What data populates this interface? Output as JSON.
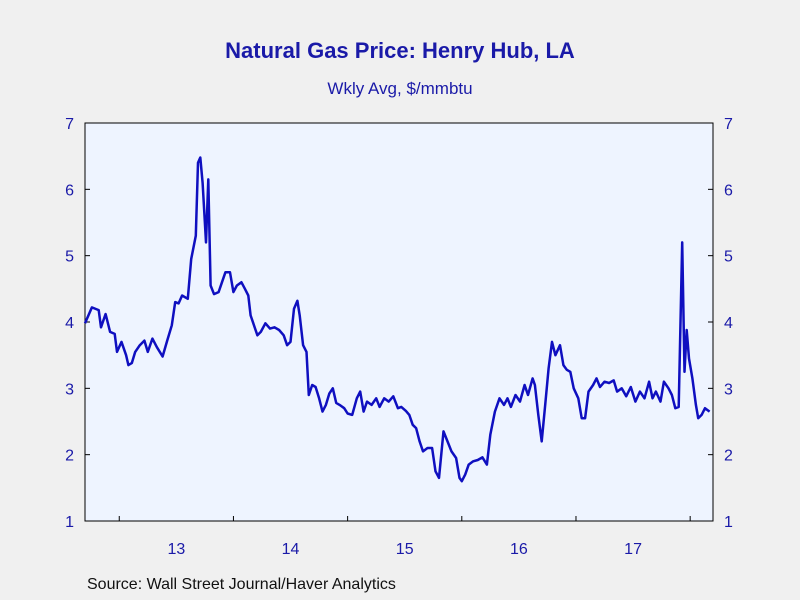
{
  "chart_data": {
    "type": "line",
    "title": "Natural Gas Price: Henry Hub, LA",
    "subtitle": "Wkly Avg, $/mmbtu",
    "source": "Source:  Wall Street Journal/Haver Analytics",
    "ylim": [
      1,
      7
    ],
    "y_ticks": [
      "1",
      "2",
      "3",
      "4",
      "5",
      "6",
      "7"
    ],
    "x_ticks": [
      "13",
      "14",
      "15",
      "16",
      "17"
    ],
    "xlim": [
      2012.7,
      2018.2
    ],
    "grid": false,
    "colors": {
      "line": "#0f0fc0",
      "text": "#1a1aa8",
      "plot_bg": "#eef4ff",
      "page_bg": "#f0f0f0"
    },
    "series": [
      {
        "values": [
          [
            2012.7,
            3.98
          ],
          [
            2012.76,
            4.22
          ],
          [
            2012.82,
            4.18
          ],
          [
            2012.84,
            3.92
          ],
          [
            2012.88,
            4.12
          ],
          [
            2012.92,
            3.85
          ],
          [
            2012.96,
            3.82
          ],
          [
            2012.98,
            3.55
          ],
          [
            2013.02,
            3.7
          ],
          [
            2013.06,
            3.5
          ],
          [
            2013.08,
            3.35
          ],
          [
            2013.11,
            3.38
          ],
          [
            2013.14,
            3.55
          ],
          [
            2013.18,
            3.65
          ],
          [
            2013.22,
            3.72
          ],
          [
            2013.25,
            3.55
          ],
          [
            2013.29,
            3.75
          ],
          [
            2013.33,
            3.62
          ],
          [
            2013.38,
            3.48
          ],
          [
            2013.42,
            3.72
          ],
          [
            2013.46,
            3.95
          ],
          [
            2013.49,
            4.3
          ],
          [
            2013.52,
            4.28
          ],
          [
            2013.55,
            4.4
          ],
          [
            2013.6,
            4.35
          ],
          [
            2013.63,
            4.95
          ],
          [
            2013.67,
            5.3
          ],
          [
            2013.69,
            6.4
          ],
          [
            2013.71,
            6.48
          ],
          [
            2013.73,
            6.1
          ],
          [
            2013.76,
            5.2
          ],
          [
            2013.78,
            6.15
          ],
          [
            2013.8,
            4.55
          ],
          [
            2013.83,
            4.42
          ],
          [
            2013.87,
            4.45
          ],
          [
            2013.9,
            4.6
          ],
          [
            2013.93,
            4.75
          ],
          [
            2013.97,
            4.75
          ],
          [
            2014.0,
            4.45
          ],
          [
            2014.03,
            4.55
          ],
          [
            2014.07,
            4.6
          ],
          [
            2014.1,
            4.5
          ],
          [
            2014.13,
            4.4
          ],
          [
            2014.15,
            4.1
          ],
          [
            2014.19,
            3.9
          ],
          [
            2014.21,
            3.8
          ],
          [
            2014.24,
            3.85
          ],
          [
            2014.28,
            3.98
          ],
          [
            2014.32,
            3.9
          ],
          [
            2014.36,
            3.92
          ],
          [
            2014.4,
            3.88
          ],
          [
            2014.44,
            3.8
          ],
          [
            2014.47,
            3.65
          ],
          [
            2014.5,
            3.7
          ],
          [
            2014.53,
            4.2
          ],
          [
            2014.56,
            4.32
          ],
          [
            2014.58,
            4.1
          ],
          [
            2014.61,
            3.65
          ],
          [
            2014.64,
            3.55
          ],
          [
            2014.66,
            2.9
          ],
          [
            2014.69,
            3.05
          ],
          [
            2014.72,
            3.02
          ],
          [
            2014.75,
            2.85
          ],
          [
            2014.78,
            2.65
          ],
          [
            2014.81,
            2.75
          ],
          [
            2014.84,
            2.92
          ],
          [
            2014.87,
            3.0
          ],
          [
            2014.9,
            2.78
          ],
          [
            2014.93,
            2.75
          ],
          [
            2014.97,
            2.7
          ],
          [
            2015.0,
            2.62
          ],
          [
            2015.04,
            2.6
          ],
          [
            2015.08,
            2.85
          ],
          [
            2015.11,
            2.95
          ],
          [
            2015.14,
            2.65
          ],
          [
            2015.17,
            2.8
          ],
          [
            2015.21,
            2.75
          ],
          [
            2015.25,
            2.85
          ],
          [
            2015.28,
            2.72
          ],
          [
            2015.32,
            2.85
          ],
          [
            2015.36,
            2.8
          ],
          [
            2015.4,
            2.88
          ],
          [
            2015.44,
            2.7
          ],
          [
            2015.47,
            2.72
          ],
          [
            2015.51,
            2.66
          ],
          [
            2015.54,
            2.6
          ],
          [
            2015.57,
            2.45
          ],
          [
            2015.6,
            2.4
          ],
          [
            2015.63,
            2.2
          ],
          [
            2015.66,
            2.05
          ],
          [
            2015.7,
            2.1
          ],
          [
            2015.74,
            2.1
          ],
          [
            2015.77,
            1.75
          ],
          [
            2015.8,
            1.65
          ],
          [
            2015.84,
            2.35
          ],
          [
            2015.87,
            2.22
          ],
          [
            2015.91,
            2.05
          ],
          [
            2015.95,
            1.95
          ],
          [
            2015.98,
            1.65
          ],
          [
            2016.0,
            1.6
          ],
          [
            2016.03,
            1.7
          ],
          [
            2016.06,
            1.85
          ],
          [
            2016.1,
            1.9
          ],
          [
            2016.14,
            1.92
          ],
          [
            2016.18,
            1.96
          ],
          [
            2016.22,
            1.85
          ],
          [
            2016.25,
            2.3
          ],
          [
            2016.29,
            2.65
          ],
          [
            2016.33,
            2.85
          ],
          [
            2016.37,
            2.75
          ],
          [
            2016.4,
            2.85
          ],
          [
            2016.43,
            2.72
          ],
          [
            2016.47,
            2.9
          ],
          [
            2016.51,
            2.8
          ],
          [
            2016.55,
            3.05
          ],
          [
            2016.58,
            2.9
          ],
          [
            2016.62,
            3.15
          ],
          [
            2016.64,
            3.05
          ],
          [
            2016.67,
            2.6
          ],
          [
            2016.7,
            2.2
          ],
          [
            2016.73,
            2.75
          ],
          [
            2016.76,
            3.3
          ],
          [
            2016.79,
            3.7
          ],
          [
            2016.82,
            3.5
          ],
          [
            2016.86,
            3.65
          ],
          [
            2016.89,
            3.35
          ],
          [
            2016.92,
            3.28
          ],
          [
            2016.95,
            3.25
          ],
          [
            2016.98,
            3.0
          ],
          [
            2017.02,
            2.85
          ],
          [
            2017.05,
            2.55
          ],
          [
            2017.08,
            2.55
          ],
          [
            2017.11,
            2.95
          ],
          [
            2017.15,
            3.05
          ],
          [
            2017.18,
            3.15
          ],
          [
            2017.21,
            3.02
          ],
          [
            2017.25,
            3.1
          ],
          [
            2017.29,
            3.08
          ],
          [
            2017.33,
            3.12
          ],
          [
            2017.36,
            2.95
          ],
          [
            2017.4,
            3.0
          ],
          [
            2017.44,
            2.88
          ],
          [
            2017.48,
            3.02
          ],
          [
            2017.52,
            2.8
          ],
          [
            2017.56,
            2.95
          ],
          [
            2017.6,
            2.85
          ],
          [
            2017.64,
            3.1
          ],
          [
            2017.67,
            2.85
          ],
          [
            2017.7,
            2.95
          ],
          [
            2017.74,
            2.8
          ],
          [
            2017.77,
            3.1
          ],
          [
            2017.81,
            3.0
          ],
          [
            2017.84,
            2.9
          ],
          [
            2017.87,
            2.7
          ],
          [
            2017.9,
            2.72
          ],
          [
            2017.93,
            5.2
          ],
          [
            2017.95,
            3.25
          ],
          [
            2017.97,
            3.88
          ],
          [
            2017.99,
            3.45
          ],
          [
            2018.02,
            3.15
          ],
          [
            2018.05,
            2.75
          ],
          [
            2018.07,
            2.55
          ],
          [
            2018.1,
            2.6
          ],
          [
            2018.13,
            2.7
          ],
          [
            2018.17,
            2.65
          ]
        ]
      }
    ]
  }
}
